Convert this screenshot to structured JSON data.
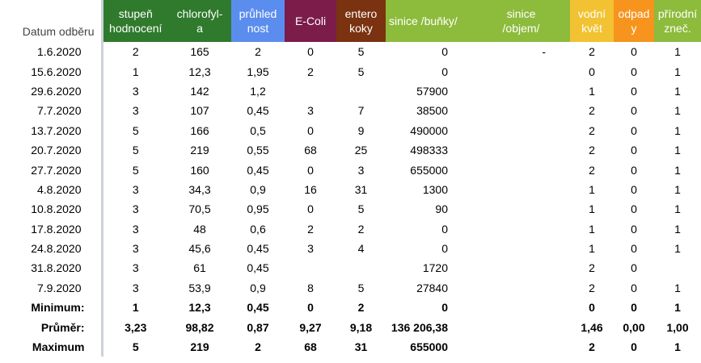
{
  "headers": {
    "date": [
      "Datum odběru"
    ],
    "stupen": [
      "stupeň",
      "hodnocení"
    ],
    "chlorofyl": [
      "chlorofyl-",
      "a"
    ],
    "pruhlednost": [
      "průhled",
      "nost"
    ],
    "ecoli": [
      "E-Coli"
    ],
    "entero": [
      "entero",
      "koky"
    ],
    "sinice_bunky": [
      "sinice /buňky/"
    ],
    "sinice_objem": [
      "sinice",
      "/objem/"
    ],
    "vodni_kvet": [
      "vodní",
      "květ"
    ],
    "odpady": [
      "odpad",
      "y"
    ],
    "prirodni": [
      "přírodní",
      "zneč."
    ]
  },
  "header_colors": {
    "stupen": "#2f7a2c",
    "chlorofyl": "#2f7a2c",
    "pruhlednost": "#5b8def",
    "ecoli": "#7b1c4b",
    "entero": "#7a3210",
    "sinice": "#8dbb3c",
    "vodni_kvet": "#f2c232",
    "odpady": "#f7941d",
    "prirodni": "#8dbb3c"
  },
  "rows": [
    [
      "1.6.2020",
      "2",
      "165",
      "2",
      "0",
      "5",
      "0",
      "-",
      "2",
      "0",
      "1"
    ],
    [
      "15.6.2020",
      "1",
      "12,3",
      "1,95",
      "2",
      "5",
      "0",
      "",
      "0",
      "0",
      "1"
    ],
    [
      "29.6.2020",
      "3",
      "142",
      "1,2",
      "",
      "",
      "57900",
      "",
      "1",
      "0",
      "1"
    ],
    [
      "7.7.2020",
      "3",
      "107",
      "0,45",
      "3",
      "7",
      "38500",
      "",
      "2",
      "0",
      "1"
    ],
    [
      "13.7.2020",
      "5",
      "166",
      "0,5",
      "0",
      "9",
      "490000",
      "",
      "2",
      "0",
      "1"
    ],
    [
      "20.7.2020",
      "5",
      "219",
      "0,55",
      "68",
      "25",
      "498333",
      "",
      "2",
      "0",
      "1"
    ],
    [
      "27.7.2020",
      "5",
      "160",
      "0,45",
      "0",
      "3",
      "655000",
      "",
      "2",
      "0",
      "1"
    ],
    [
      "4.8.2020",
      "3",
      "34,3",
      "0,9",
      "16",
      "31",
      "1300",
      "",
      "1",
      "0",
      "1"
    ],
    [
      "10.8.2020",
      "3",
      "70,5",
      "0,95",
      "0",
      "5",
      "90",
      "",
      "1",
      "0",
      "1"
    ],
    [
      "17.8.2020",
      "3",
      "48",
      "0,6",
      "2",
      "2",
      "0",
      "",
      "1",
      "0",
      "1"
    ],
    [
      "24.8.2020",
      "3",
      "45,6",
      "0,45",
      "3",
      "4",
      "0",
      "",
      "1",
      "0",
      "1"
    ],
    [
      "31.8.2020",
      "3",
      "61",
      "0,45",
      "",
      "",
      "1720",
      "",
      "2",
      "0",
      ""
    ],
    [
      "7.9.2020",
      "3",
      "53,9",
      "0,9",
      "8",
      "5",
      "27840",
      "",
      "2",
      "0",
      "1"
    ]
  ],
  "summary": [
    [
      "Minimum:",
      "1",
      "12,3",
      "0,45",
      "0",
      "2",
      "0",
      "",
      "0",
      "0",
      "1"
    ],
    [
      "Průměr:",
      "3,23",
      "98,82",
      "0,87",
      "9,27",
      "9,18",
      "136 206,38",
      "",
      "1,46",
      "0,00",
      "1,00"
    ],
    [
      "Maximum",
      "5",
      "219",
      "2",
      "68",
      "31",
      "655000",
      "",
      "2",
      "0",
      "1"
    ]
  ]
}
